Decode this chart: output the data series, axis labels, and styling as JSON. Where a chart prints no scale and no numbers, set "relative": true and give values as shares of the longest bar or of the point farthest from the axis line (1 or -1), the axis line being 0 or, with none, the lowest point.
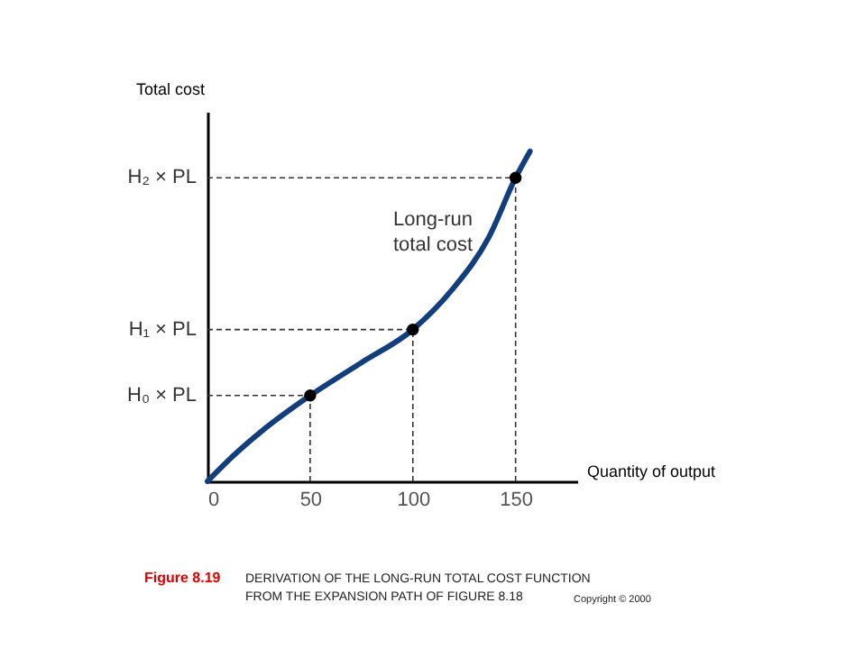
{
  "chart_data": {
    "type": "line",
    "relative": true,
    "xlabel": "Quantity of output",
    "ylabel": "Total cost",
    "xlim": [
      0,
      180
    ],
    "xticks": [
      0,
      50,
      100,
      150
    ],
    "grid": false,
    "series": [
      {
        "color": "#123f7c",
        "marker": "none",
        "line_style": "solid",
        "x": [
          0,
          13,
          26,
          50,
          75,
          100,
          119,
          137,
          150,
          157
        ],
        "values": [
          0,
          0.08,
          0.15,
          0.26,
          0.36,
          0.46,
          0.58,
          0.74,
          0.92,
          1.0
        ]
      },
      {
        "type": "scatter",
        "color": "#000000",
        "marker": "circle",
        "x": [
          50,
          100,
          150
        ],
        "values": [
          0.26,
          0.46,
          0.92
        ]
      }
    ],
    "ref_lines": [
      {
        "axis": "y",
        "value": 0.26,
        "label": "H₀ × PL",
        "line_style": "dashed",
        "color": "#333333"
      },
      {
        "axis": "y",
        "value": 0.46,
        "label": "H₁ × PL",
        "line_style": "dashed",
        "color": "#333333"
      },
      {
        "axis": "y",
        "value": 0.92,
        "label": "H₂ × PL",
        "line_style": "dashed",
        "color": "#333333"
      },
      {
        "axis": "x",
        "value": 50,
        "line_style": "dashed",
        "color": "#333333"
      },
      {
        "axis": "x",
        "value": 100,
        "line_style": "dashed",
        "color": "#333333"
      },
      {
        "axis": "x",
        "value": 150,
        "line_style": "dashed",
        "color": "#333333"
      }
    ],
    "annotations": [
      "Long-run\ntotal cost",
      "Figure 8.19",
      "DERIVATION OF THE LONG-RUN TOTAL COST FUNCTION\nFROM THE EXPANSION PATH OF FIGURE 8.18",
      "Copyright © 2000"
    ]
  }
}
